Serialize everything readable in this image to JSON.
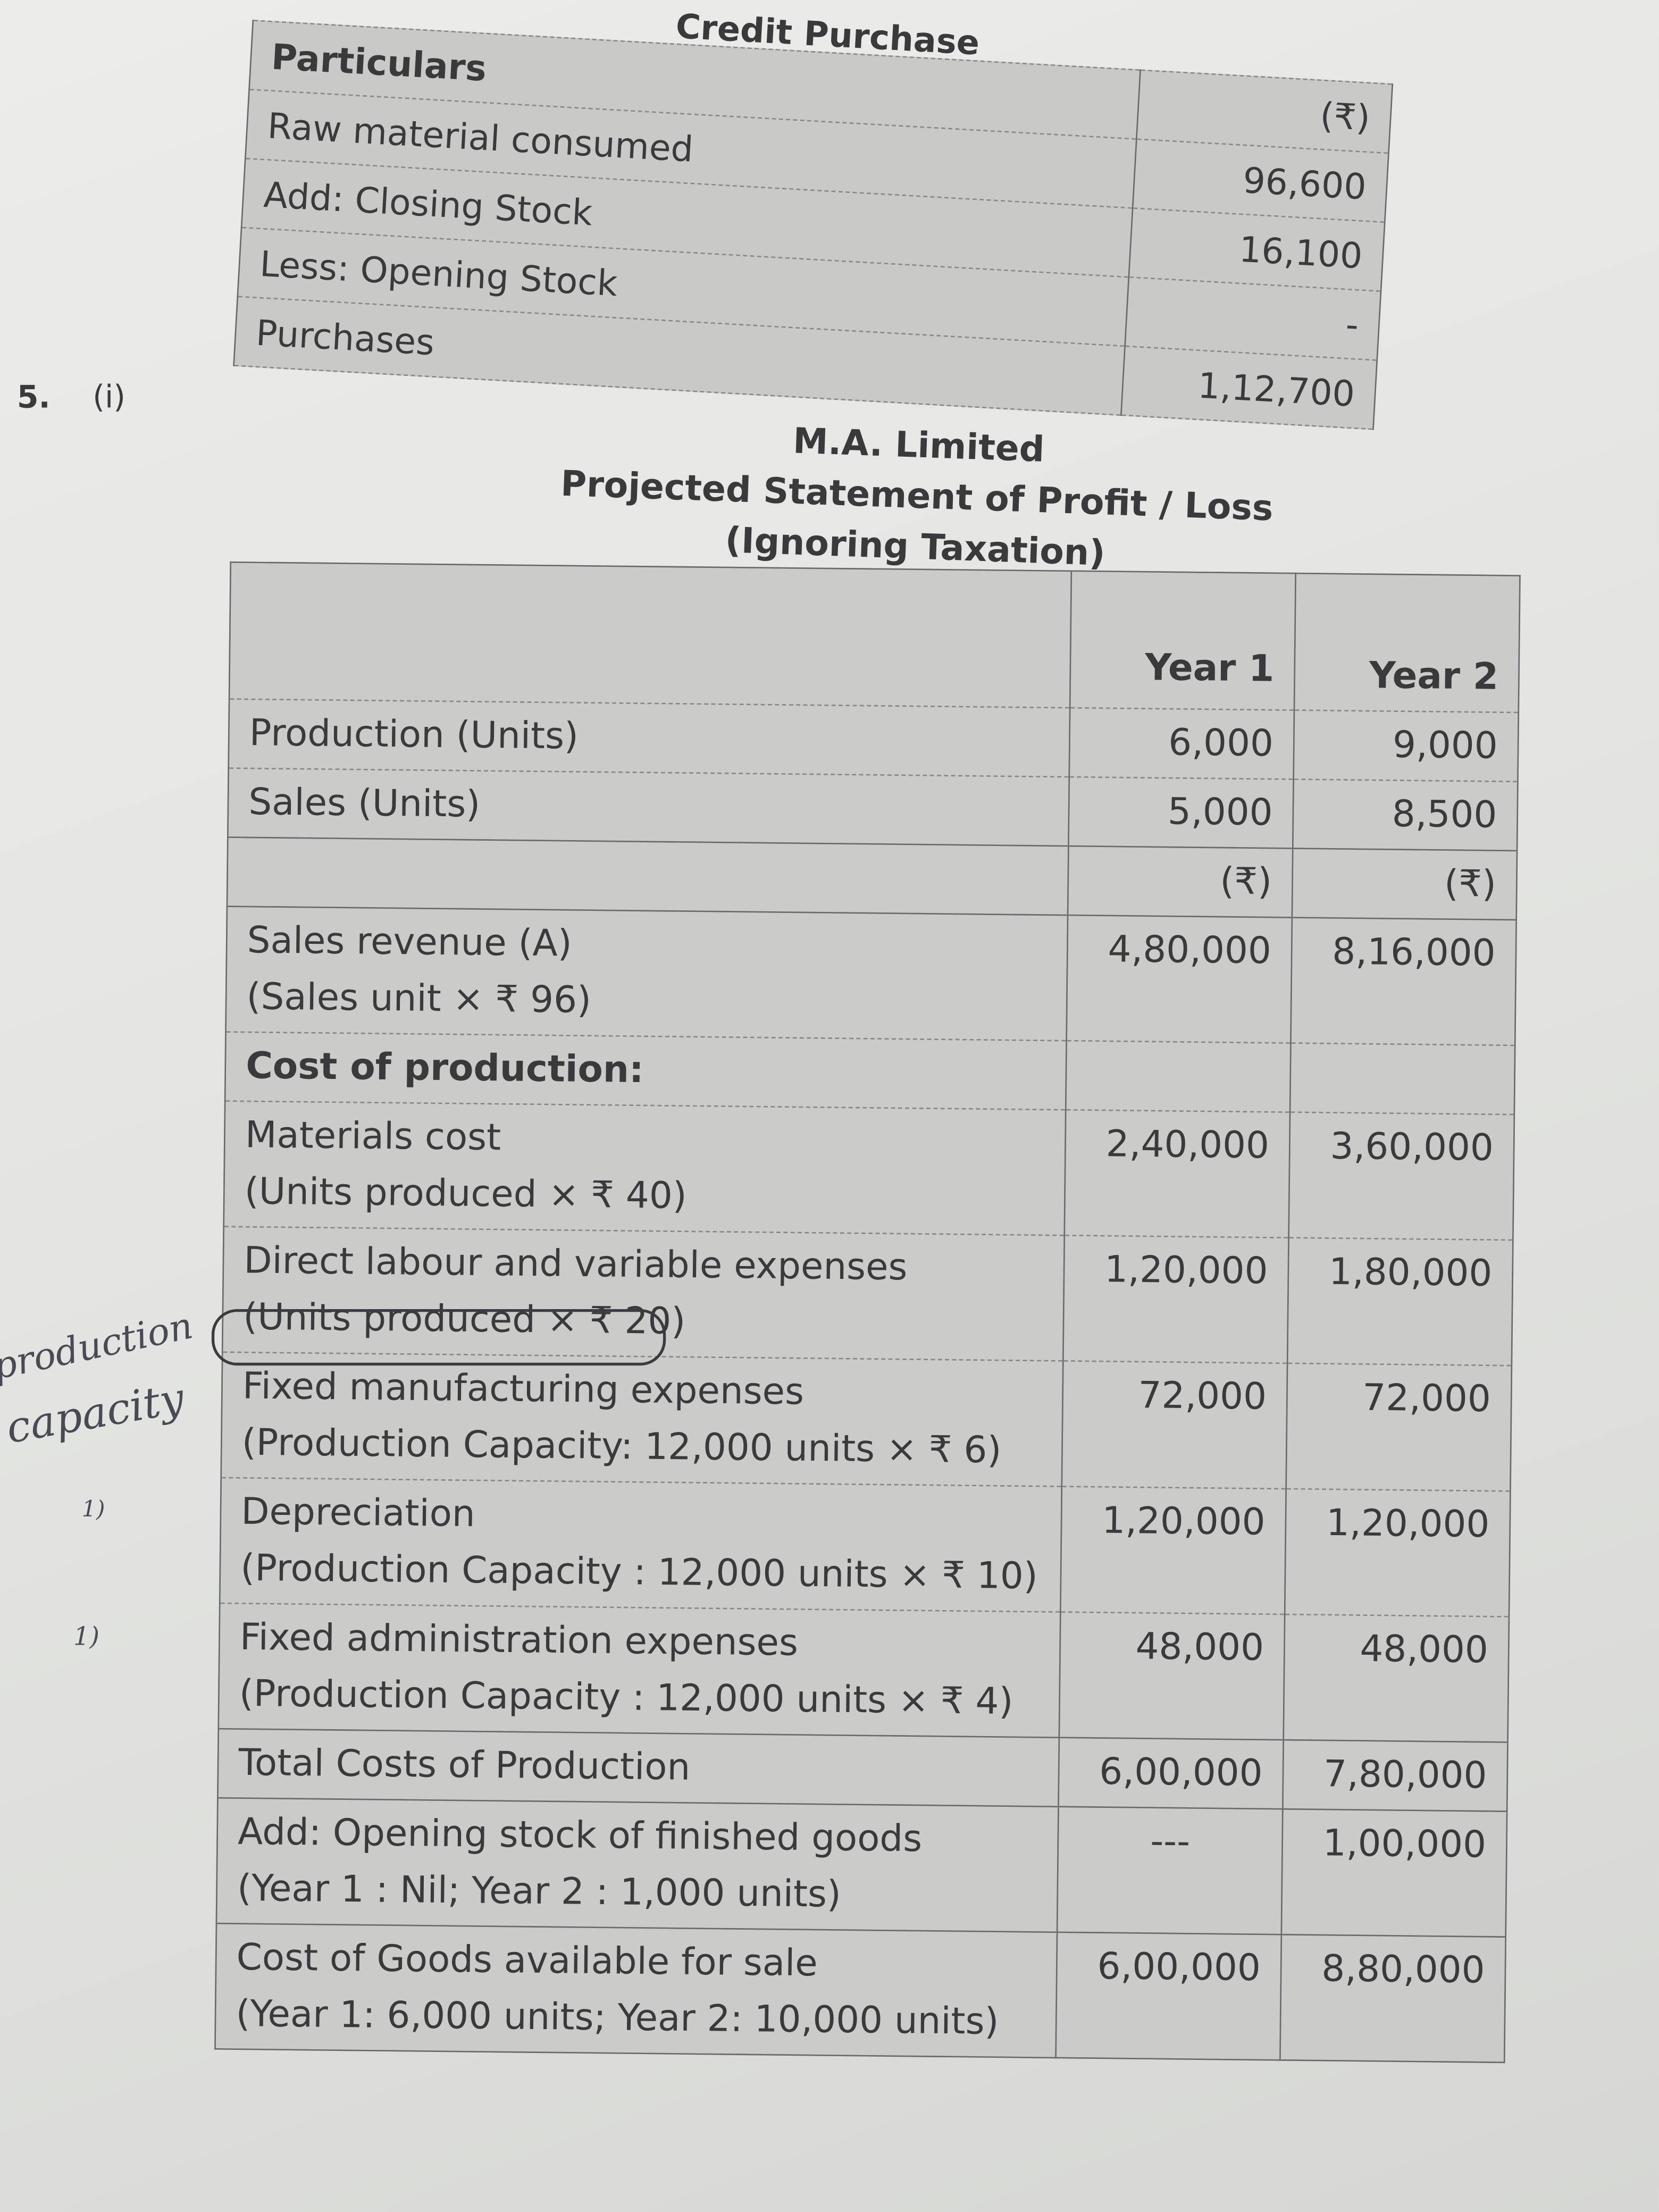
{
  "credit_purchase": {
    "title": "Credit Purchase",
    "header": {
      "label": "Particulars",
      "value": "(₹)"
    },
    "rows": [
      {
        "label": "Raw material consumed",
        "value": "96,600"
      },
      {
        "label": "Add: Closing Stock",
        "value": "16,100"
      },
      {
        "label": "Less: Opening Stock",
        "value": "-"
      },
      {
        "label": "Purchases",
        "value": "1,12,700"
      }
    ]
  },
  "question": {
    "number": "5.",
    "part": "(i)"
  },
  "statement": {
    "company": "M.A. Limited",
    "title": "Projected Statement of Profit / Loss",
    "subtitle": "(Ignoring Taxation)",
    "columns": [
      "",
      "Year 1",
      "Year 2"
    ],
    "rows": [
      {
        "label": "Production (Units)",
        "sub": "",
        "y1": "6,000",
        "y2": "9,000"
      },
      {
        "label": "Sales (Units)",
        "sub": "",
        "y1": "5,000",
        "y2": "8,500"
      },
      {
        "label": "",
        "sub": "",
        "y1": "(₹)",
        "y2": "(₹)"
      },
      {
        "label": "Sales revenue (A)",
        "sub": "(Sales unit × ₹ 96)",
        "y1": "4,80,000",
        "y2": "8,16,000"
      },
      {
        "label": "Cost of production:",
        "sub": "",
        "y1": "",
        "y2": ""
      },
      {
        "label": "Materials cost",
        "sub": "(Units produced × ₹ 40)",
        "y1": "2,40,000",
        "y2": "3,60,000"
      },
      {
        "label": "Direct labour and variable expenses",
        "sub": "(Units produced × ₹ 20)",
        "y1": "1,20,000",
        "y2": "1,80,000"
      },
      {
        "label": "Fixed manufacturing expenses",
        "sub": "(Production Capacity: 12,000 units × ₹ 6)",
        "y1": "72,000",
        "y2": "72,000"
      },
      {
        "label": "Depreciation",
        "sub": "(Production Capacity : 12,000 units × ₹ 10)",
        "y1": "1,20,000",
        "y2": "1,20,000"
      },
      {
        "label": "Fixed administration expenses",
        "sub": "(Production Capacity : 12,000 units × ₹ 4)",
        "y1": "48,000",
        "y2": "48,000"
      },
      {
        "label": "Total Costs of Production",
        "sub": "",
        "y1": "6,00,000",
        "y2": "7,80,000"
      },
      {
        "label": "Add: Opening stock of finished goods",
        "sub": "(Year 1 : Nil; Year 2 : 1,000 units)",
        "y1": "---",
        "y2": "1,00,000"
      },
      {
        "label": "Cost of Goods available for sale",
        "sub": "(Year 1: 6,000 units; Year 2: 10,000 units)",
        "y1": "6,00,000",
        "y2": "8,80,000"
      }
    ]
  },
  "handwriting": {
    "note_line1": "production",
    "note_line2": "capacity",
    "mark1": "1)",
    "mark2": "1)"
  }
}
